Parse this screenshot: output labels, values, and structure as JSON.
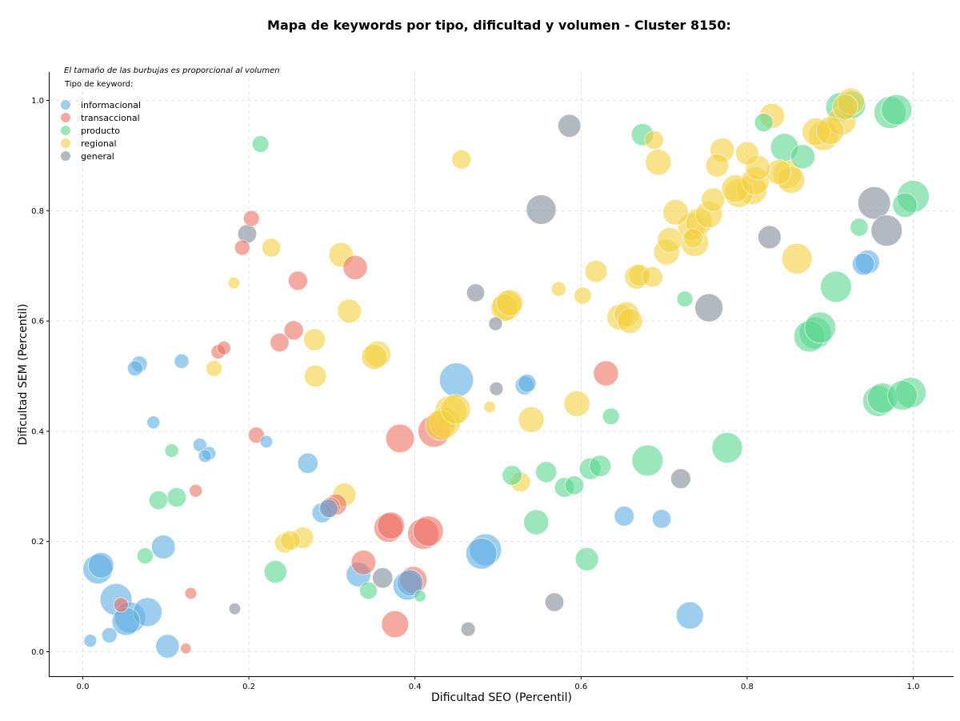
{
  "chart_data": {
    "type": "scatter",
    "title": "Mapa de keywords por tipo, dificultad y volumen - Cluster 8150:",
    "note": "El tamaño de las burbujas es proporcional al volumen",
    "legend_title": "Tipo de keyword:",
    "legend_placement": "top-left",
    "xlabel": "Dificultad SEO (Percentil)",
    "ylabel": "Dificultad SEM (Percentil)",
    "xlim": [
      -0.04,
      1.05
    ],
    "ylim": [
      -0.045,
      1.05
    ],
    "x_ticks": [
      "0.0",
      "0.2",
      "0.4",
      "0.6",
      "0.8",
      "1.0"
    ],
    "y_ticks": [
      "0.0",
      "0.2",
      "0.4",
      "0.6",
      "0.8",
      "1.0"
    ],
    "grid": true,
    "series": [
      {
        "name": "informacional",
        "color": "#5DADE2",
        "points": [
          [
            0.009,
            0.02,
            180
          ],
          [
            0.018,
            0.15,
            950
          ],
          [
            0.022,
            0.157,
            700
          ],
          [
            0.032,
            0.03,
            250
          ],
          [
            0.04,
            0.095,
            1100
          ],
          [
            0.052,
            0.055,
            850
          ],
          [
            0.057,
            0.062,
            1050
          ],
          [
            0.063,
            0.514,
            250
          ],
          [
            0.068,
            0.522,
            280
          ],
          [
            0.078,
            0.072,
            900
          ],
          [
            0.085,
            0.416,
            180
          ],
          [
            0.097,
            0.19,
            620
          ],
          [
            0.102,
            0.01,
            600
          ],
          [
            0.119,
            0.527,
            230
          ],
          [
            0.141,
            0.375,
            200
          ],
          [
            0.147,
            0.355,
            180
          ],
          [
            0.152,
            0.36,
            200
          ],
          [
            0.221,
            0.381,
            170
          ],
          [
            0.271,
            0.342,
            450
          ],
          [
            0.288,
            0.252,
            430
          ],
          [
            0.296,
            0.26,
            380
          ],
          [
            0.332,
            0.14,
            650
          ],
          [
            0.391,
            0.12,
            900
          ],
          [
            0.394,
            0.125,
            750
          ],
          [
            0.45,
            0.493,
            1250
          ],
          [
            0.48,
            0.178,
            1050
          ],
          [
            0.485,
            0.185,
            1100
          ],
          [
            0.532,
            0.483,
            380
          ],
          [
            0.535,
            0.487,
            350
          ],
          [
            0.652,
            0.246,
            430
          ],
          [
            0.697,
            0.241,
            380
          ],
          [
            0.731,
            0.066,
            800
          ],
          [
            0.94,
            0.703,
            530
          ],
          [
            0.945,
            0.707,
            620
          ]
        ]
      },
      {
        "name": "transaccional",
        "color": "#EC7063",
        "points": [
          [
            0.046,
            0.085,
            230
          ],
          [
            0.13,
            0.106,
            150
          ],
          [
            0.124,
            0.006,
            120
          ],
          [
            0.136,
            0.292,
            180
          ],
          [
            0.163,
            0.544,
            220
          ],
          [
            0.17,
            0.551,
            200
          ],
          [
            0.192,
            0.733,
            250
          ],
          [
            0.203,
            0.786,
            270
          ],
          [
            0.209,
            0.393,
            280
          ],
          [
            0.237,
            0.561,
            380
          ],
          [
            0.254,
            0.583,
            400
          ],
          [
            0.259,
            0.673,
            400
          ],
          [
            0.298,
            0.262,
            430
          ],
          [
            0.305,
            0.267,
            480
          ],
          [
            0.328,
            0.697,
            630
          ],
          [
            0.338,
            0.162,
            650
          ],
          [
            0.368,
            0.225,
            900
          ],
          [
            0.371,
            0.229,
            780
          ],
          [
            0.376,
            0.05,
            780
          ],
          [
            0.382,
            0.387,
            880
          ],
          [
            0.398,
            0.13,
            800
          ],
          [
            0.41,
            0.214,
            1050
          ],
          [
            0.416,
            0.219,
            980
          ],
          [
            0.423,
            0.4,
            1100
          ],
          [
            0.63,
            0.505,
            680
          ]
        ]
      },
      {
        "name": "producto",
        "color": "#58D68D",
        "points": [
          [
            0.075,
            0.174,
            280
          ],
          [
            0.091,
            0.275,
            380
          ],
          [
            0.107,
            0.365,
            200
          ],
          [
            0.113,
            0.28,
            400
          ],
          [
            0.214,
            0.921,
            300
          ],
          [
            0.232,
            0.145,
            550
          ],
          [
            0.344,
            0.111,
            330
          ],
          [
            0.406,
            0.101,
            150
          ],
          [
            0.517,
            0.32,
            420
          ],
          [
            0.546,
            0.235,
            680
          ],
          [
            0.558,
            0.326,
            480
          ],
          [
            0.58,
            0.298,
            420
          ],
          [
            0.592,
            0.302,
            380
          ],
          [
            0.611,
            0.332,
            500
          ],
          [
            0.623,
            0.337,
            500
          ],
          [
            0.607,
            0.168,
            580
          ],
          [
            0.636,
            0.427,
            300
          ],
          [
            0.674,
            0.938,
            530
          ],
          [
            0.68,
            0.347,
            1050
          ],
          [
            0.725,
            0.64,
            270
          ],
          [
            0.776,
            0.37,
            1000
          ],
          [
            0.82,
            0.96,
            370
          ],
          [
            0.845,
            0.915,
            830
          ],
          [
            0.867,
            0.898,
            630
          ],
          [
            0.875,
            0.572,
            1050
          ],
          [
            0.882,
            0.578,
            1100
          ],
          [
            0.888,
            0.588,
            1050
          ],
          [
            0.907,
            0.662,
            1050
          ],
          [
            0.912,
            0.988,
            900
          ],
          [
            0.926,
            0.992,
            830
          ],
          [
            0.935,
            0.77,
            350
          ],
          [
            0.958,
            0.455,
            1050
          ],
          [
            0.963,
            0.46,
            980
          ],
          [
            0.972,
            0.978,
            1100
          ],
          [
            0.98,
            0.983,
            1000
          ],
          [
            0.987,
            0.465,
            950
          ],
          [
            0.99,
            0.81,
            650
          ],
          [
            0.997,
            0.47,
            1000
          ],
          [
            1.0,
            0.826,
            1100
          ]
        ]
      },
      {
        "name": "regional",
        "color": "#F4D03F",
        "points": [
          [
            0.158,
            0.514,
            270
          ],
          [
            0.182,
            0.669,
            150
          ],
          [
            0.227,
            0.733,
            380
          ],
          [
            0.243,
            0.197,
            420
          ],
          [
            0.25,
            0.202,
            420
          ],
          [
            0.265,
            0.207,
            500
          ],
          [
            0.279,
            0.566,
            520
          ],
          [
            0.28,
            0.5,
            520
          ],
          [
            0.311,
            0.72,
            650
          ],
          [
            0.315,
            0.285,
            580
          ],
          [
            0.321,
            0.618,
            620
          ],
          [
            0.351,
            0.535,
            700
          ],
          [
            0.355,
            0.54,
            750
          ],
          [
            0.431,
            0.411,
            1000
          ],
          [
            0.436,
            0.416,
            1050
          ],
          [
            0.443,
            0.436,
            1100
          ],
          [
            0.449,
            0.44,
            950
          ],
          [
            0.456,
            0.893,
            400
          ],
          [
            0.49,
            0.444,
            150
          ],
          [
            0.508,
            0.624,
            800
          ],
          [
            0.511,
            0.628,
            900
          ],
          [
            0.514,
            0.633,
            750
          ],
          [
            0.527,
            0.308,
            430
          ],
          [
            0.54,
            0.421,
            720
          ],
          [
            0.573,
            0.658,
            230
          ],
          [
            0.595,
            0.45,
            720
          ],
          [
            0.602,
            0.646,
            320
          ],
          [
            0.618,
            0.69,
            530
          ],
          [
            0.647,
            0.607,
            730
          ],
          [
            0.655,
            0.612,
            680
          ],
          [
            0.659,
            0.6,
            680
          ],
          [
            0.667,
            0.68,
            630
          ],
          [
            0.67,
            0.683,
            520
          ],
          [
            0.688,
            0.928,
            380
          ],
          [
            0.693,
            0.888,
            720
          ],
          [
            0.703,
            0.725,
            720
          ],
          [
            0.707,
            0.747,
            680
          ],
          [
            0.714,
            0.797,
            700
          ],
          [
            0.733,
            0.771,
            800
          ],
          [
            0.737,
            0.742,
            830
          ],
          [
            0.742,
            0.78,
            780
          ],
          [
            0.754,
            0.793,
            780
          ],
          [
            0.759,
            0.82,
            600
          ],
          [
            0.764,
            0.882,
            580
          ],
          [
            0.77,
            0.91,
            630
          ],
          [
            0.786,
            0.84,
            830
          ],
          [
            0.79,
            0.832,
            900
          ],
          [
            0.8,
            0.904,
            580
          ],
          [
            0.806,
            0.838,
            950
          ],
          [
            0.81,
            0.854,
            830
          ],
          [
            0.813,
            0.878,
            650
          ],
          [
            0.83,
            0.972,
            680
          ],
          [
            0.838,
            0.87,
            680
          ],
          [
            0.848,
            0.866,
            880
          ],
          [
            0.853,
            0.856,
            800
          ],
          [
            0.86,
            0.713,
            1000
          ],
          [
            0.883,
            0.943,
            830
          ],
          [
            0.892,
            0.936,
            950
          ],
          [
            0.9,
            0.945,
            830
          ],
          [
            0.914,
            0.963,
            880
          ],
          [
            0.918,
            0.988,
            700
          ],
          [
            0.925,
            0.998,
            780
          ],
          [
            0.686,
            0.68,
            450
          ],
          [
            0.735,
            0.75,
            400
          ]
        ]
      },
      {
        "name": "general",
        "color": "#808B96",
        "points": [
          [
            0.183,
            0.078,
            150
          ],
          [
            0.198,
            0.758,
            380
          ],
          [
            0.361,
            0.134,
            450
          ],
          [
            0.464,
            0.041,
            220
          ],
          [
            0.473,
            0.651,
            350
          ],
          [
            0.497,
            0.595,
            200
          ],
          [
            0.498,
            0.477,
            200
          ],
          [
            0.552,
            0.802,
            950
          ],
          [
            0.568,
            0.09,
            380
          ],
          [
            0.586,
            0.954,
            560
          ],
          [
            0.72,
            0.314,
            430
          ],
          [
            0.754,
            0.624,
            850
          ],
          [
            0.827,
            0.752,
            580
          ],
          [
            0.953,
            0.814,
            1150
          ],
          [
            0.968,
            0.764,
            1050
          ]
        ]
      }
    ]
  }
}
